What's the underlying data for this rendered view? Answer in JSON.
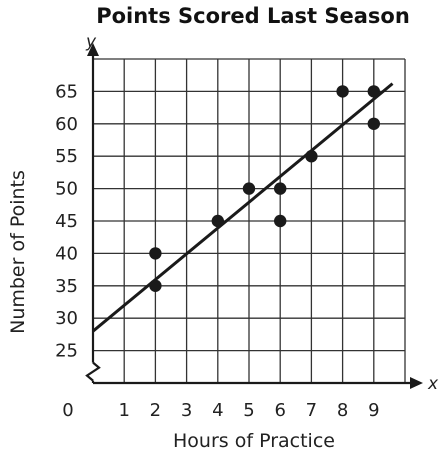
{
  "chart_data": {
    "type": "scatter",
    "title": "Points Scored Last Season",
    "xlabel": "Hours of Practice",
    "ylabel": "Number of Points",
    "x_axis_letter": "x",
    "y_axis_letter": "y",
    "origin_label": "0",
    "x_ticks": [
      1,
      2,
      3,
      4,
      5,
      6,
      7,
      8,
      9
    ],
    "y_ticks": [
      25,
      30,
      35,
      40,
      45,
      50,
      55,
      60,
      65
    ],
    "xlim": [
      0,
      10
    ],
    "ylim": [
      20,
      70
    ],
    "y_axis_break": true,
    "grid": true,
    "points": [
      {
        "x": 2,
        "y": 40
      },
      {
        "x": 2,
        "y": 35
      },
      {
        "x": 4,
        "y": 45
      },
      {
        "x": 5,
        "y": 50
      },
      {
        "x": 6,
        "y": 50
      },
      {
        "x": 6,
        "y": 45
      },
      {
        "x": 7,
        "y": 55
      },
      {
        "x": 8,
        "y": 65
      },
      {
        "x": 9,
        "y": 65
      },
      {
        "x": 9,
        "y": 60
      }
    ],
    "trend_line": {
      "x0": 0,
      "y0": 28,
      "x1": 9.6,
      "y1": 66.2
    }
  },
  "colors": {
    "ink": "#1a1a1a",
    "grid": "#333333",
    "background": "#ffffff"
  }
}
